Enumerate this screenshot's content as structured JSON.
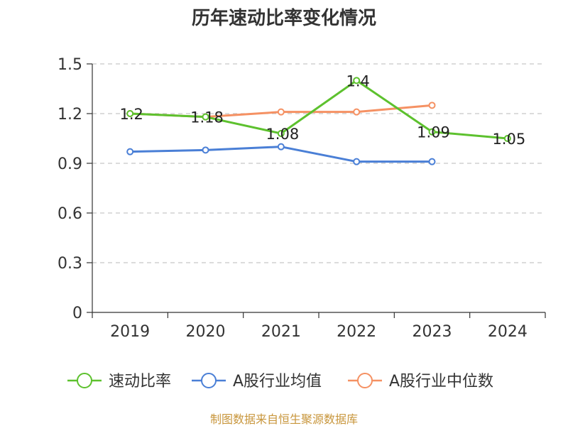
{
  "chart_data": {
    "type": "line",
    "title": "历年速动比率变化情况",
    "categories": [
      "2019",
      "2020",
      "2021",
      "2022",
      "2023",
      "2024"
    ],
    "ylim": [
      0,
      1.5
    ],
    "yticks": [
      "0",
      "0.3",
      "0.6",
      "0.9",
      "1.2",
      "1.5"
    ],
    "grid": true,
    "legend_position": "bottom",
    "series": [
      {
        "name": "速动比率",
        "color": "#5dc12e",
        "values": [
          1.2,
          1.18,
          1.08,
          1.4,
          1.09,
          1.05
        ],
        "labels": [
          "1.2",
          "1.18",
          "1.08",
          "1.4",
          "1.09",
          "1.05"
        ]
      },
      {
        "name": "A股行业均值",
        "color": "#4a7fd6",
        "values": [
          0.97,
          0.98,
          1.0,
          0.91,
          0.91,
          null
        ]
      },
      {
        "name": "A股行业中位数",
        "color": "#f59163",
        "values": [
          1.2,
          1.18,
          1.21,
          1.21,
          1.25,
          null
        ]
      }
    ]
  },
  "source": "制图数据来自恒生聚源数据库"
}
